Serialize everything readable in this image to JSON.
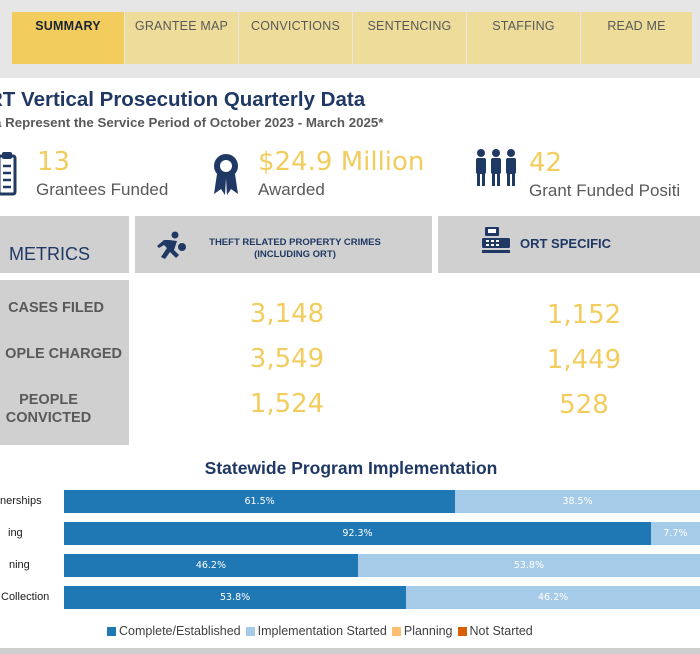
{
  "nav": {
    "tabs": [
      {
        "label": "SUMMARY",
        "active": true
      },
      {
        "label": "GRANTEE MAP",
        "active": false
      },
      {
        "label": "CONVICTIONS",
        "active": false
      },
      {
        "label": "SENTENCING",
        "active": false
      },
      {
        "label": "STAFFING",
        "active": false
      },
      {
        "label": "READ ME",
        "active": false
      }
    ]
  },
  "header": {
    "title": "RT Vertical Prosecution Quarterly Data",
    "subtitle": "a Represent the Service Period of October 2023 - March 2025*"
  },
  "kpis": [
    {
      "value": "13",
      "label": "Grantees Funded",
      "icon": "clipboard-icon"
    },
    {
      "value": "$24.9 Million",
      "label": "Awarded",
      "icon": "award-ribbon-icon"
    },
    {
      "value": "42",
      "label": "Grant Funded Positi",
      "icon": "people-group-icon"
    }
  ],
  "metrics": {
    "header_label": "METRICS",
    "col1_header": {
      "line1": "THEFT RELATED PROPERTY CRIMES",
      "line2": "(INCLUDING ORT)",
      "icon": "running-thief-icon"
    },
    "col2_header": {
      "label": "ORT SPECIFIC",
      "icon": "cash-register-icon"
    },
    "rows": [
      {
        "label": "CASES FILED",
        "theft": "3,148",
        "ort": "1,152"
      },
      {
        "label": "OPLE CHARGED",
        "theft": "3,549",
        "ort": "1,449"
      },
      {
        "label_line1": "PEOPLE",
        "label_line2": "CONVICTED",
        "theft": "1,524",
        "ort": "528"
      }
    ]
  },
  "chart_data": {
    "type": "bar",
    "orientation": "horizontal",
    "stacked": true,
    "title": "Statewide Program Implementation",
    "categories": [
      "nerships",
      "ing",
      "ning",
      "Collection"
    ],
    "series": [
      {
        "name": "Complete/Established",
        "color": "#1f77b4",
        "values": [
          61.5,
          92.3,
          46.2,
          53.8
        ],
        "labels": [
          "61.5%",
          "92.3%",
          "46.2%",
          "53.8%"
        ]
      },
      {
        "name": "Implementation Started",
        "color": "#a6cbe8",
        "values": [
          38.5,
          7.7,
          53.8,
          46.2
        ],
        "labels": [
          "38.5%",
          "7.7%",
          "53.8%",
          "46.2%"
        ]
      },
      {
        "name": "Planning",
        "color": "#fdbf6f",
        "values": [
          0,
          0,
          0,
          0
        ]
      },
      {
        "name": "Not Started",
        "color": "#d95f02",
        "values": [
          0,
          0,
          0,
          0
        ]
      }
    ],
    "xlim": [
      0,
      100
    ]
  }
}
